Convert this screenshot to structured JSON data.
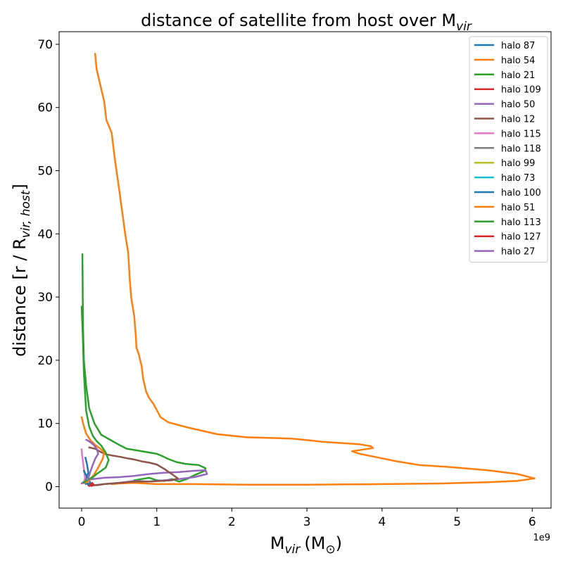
{
  "chart_data": {
    "type": "line",
    "title": "distance of satellite from host over M",
    "title_sub": "vir",
    "xlabel": "M",
    "xlabel_sub": "vir",
    "xlabel_unit": "(M",
    "xlabel_unit_sub": "⊙",
    "xlabel_close": ")",
    "ylabel": "distance [r / R",
    "ylabel_sub": "vir, host",
    "ylabel_close": "]",
    "x_offset_text": "1e9",
    "x_scale": 1000000000,
    "xlim": [
      -300000000,
      6250000000
    ],
    "ylim": [
      -3.4,
      72
    ],
    "xticks": [
      0,
      1000000000,
      2000000000,
      3000000000,
      4000000000,
      5000000000,
      6000000000
    ],
    "xtick_labels": [
      "0",
      "1",
      "2",
      "3",
      "4",
      "5",
      "6"
    ],
    "yticks": [
      0,
      10,
      20,
      30,
      40,
      50,
      60,
      70
    ],
    "ytick_labels": [
      "0",
      "10",
      "20",
      "30",
      "40",
      "50",
      "60",
      "70"
    ],
    "grid": false,
    "legend_position": "top-right",
    "series": [
      {
        "name": "halo 87",
        "color": "#1f77b4",
        "x": [
          50000000,
          70000000,
          90000000,
          60000000,
          40000000,
          55000000,
          80000000,
          60000000
        ],
        "y": [
          4.6,
          3.6,
          2.2,
          1.4,
          0.8,
          0.4,
          0.6,
          1.0
        ]
      },
      {
        "name": "halo 54",
        "color": "#ff7f0e",
        "x": [
          180000000,
          200000000,
          300000000,
          330000000,
          400000000,
          440000000,
          500000000,
          580000000,
          620000000,
          640000000,
          660000000,
          700000000,
          720000000,
          730000000,
          760000000,
          800000000,
          820000000,
          860000000,
          900000000,
          960000000,
          1050000000,
          1150000000,
          1400000000,
          1800000000,
          2200000000,
          2500000000,
          2800000000,
          3050000000,
          3200000000,
          3450000000,
          3700000000,
          3850000000,
          3880000000,
          3600000000,
          3700000000,
          3950000000,
          4200000000,
          4500000000,
          4900000000,
          5400000000,
          5800000000,
          6030000000,
          5800000000,
          5400000000,
          4800000000,
          4000000000,
          3000000000,
          2200000000,
          1500000000,
          1000000000,
          700000000,
          500000000,
          400000000
        ],
        "y": [
          68.5,
          66,
          61,
          58,
          56,
          52,
          47,
          40,
          37,
          33,
          30,
          27,
          24,
          22,
          21,
          19,
          17,
          15,
          14,
          13,
          11,
          10.2,
          9.4,
          8.3,
          7.8,
          7.7,
          7.6,
          7.3,
          7.1,
          6.9,
          6.7,
          6.4,
          6.1,
          5.6,
          5.2,
          4.6,
          4.0,
          3.4,
          3.1,
          2.6,
          2.0,
          1.3,
          0.9,
          0.7,
          0.5,
          0.4,
          0.3,
          0.3,
          0.4,
          0.4,
          0.6,
          0.5,
          0.4
        ]
      },
      {
        "name": "halo 21",
        "color": "#2ca02c",
        "x": [
          10000000,
          12000000,
          15000000,
          20000000,
          30000000,
          60000000,
          100000000,
          170000000,
          260000000,
          380000000,
          500000000,
          600000000,
          700000000,
          900000000,
          1000000000,
          1080000000,
          1150000000,
          1260000000,
          1380000000,
          1560000000,
          1650000000,
          1640000000,
          1500000000,
          1400000000,
          1300000000,
          1200000000,
          1100000000,
          1000000000,
          900000000,
          800000000,
          700000000
        ],
        "y": [
          36.8,
          34,
          30,
          25,
          20,
          16,
          12.4,
          10,
          8.2,
          7.4,
          6.6,
          6.0,
          5.8,
          5.4,
          5.2,
          4.8,
          4.4,
          3.9,
          3.6,
          3.4,
          2.9,
          2.5,
          1.8,
          1.2,
          0.8,
          1.2,
          0.9,
          1.0,
          1.4,
          1.2,
          1.0
        ]
      },
      {
        "name": "halo 109",
        "color": "#d62728",
        "x": [
          80000000,
          100000000,
          120000000,
          110000000,
          90000000
        ],
        "y": [
          0.4,
          0.1,
          0.3,
          0.6,
          0.2
        ]
      },
      {
        "name": "halo 50",
        "color": "#9467bd",
        "x": [
          0,
          30000000,
          70000000,
          150000000,
          300000000,
          500000000,
          700000000,
          900000000,
          1100000000,
          1300000000,
          1500000000,
          1650000000,
          1670000000,
          1500000000,
          1300000000,
          1100000000,
          900000000,
          700000000,
          500000000,
          300000000,
          200000000
        ],
        "y": [
          0.5,
          0.8,
          1.0,
          1.2,
          1.4,
          1.5,
          1.7,
          2.0,
          2.2,
          2.3,
          2.5,
          2.6,
          2.0,
          1.5,
          1.2,
          1.0,
          0.8,
          0.9,
          0.6,
          0.4,
          0.2
        ]
      },
      {
        "name": "halo 12",
        "color": "#8c564b",
        "x": [
          100000000,
          180000000,
          250000000,
          330000000,
          420000000,
          520000000,
          600000000,
          700000000,
          800000000,
          900000000,
          1000000000,
          1100000000,
          1200000000,
          1280000000,
          1200000000,
          1050000000,
          900000000,
          700000000,
          500000000,
          300000000,
          150000000
        ],
        "y": [
          6.2,
          6.0,
          5.5,
          5.1,
          4.9,
          4.7,
          4.5,
          4.3,
          4.0,
          3.8,
          3.5,
          2.8,
          2.0,
          1.3,
          1.0,
          0.9,
          0.8,
          0.8,
          0.6,
          0.4,
          0.2
        ]
      },
      {
        "name": "halo 115",
        "color": "#e377c2",
        "x": [
          0,
          5000000,
          15000000,
          25000000,
          35000000,
          45000000,
          35000000,
          20000000
        ],
        "y": [
          5.9,
          5.2,
          4.2,
          3.3,
          2.4,
          1.4,
          0.8,
          0.5
        ]
      },
      {
        "name": "halo 118",
        "color": "#7f7f7f",
        "x": [],
        "y": []
      },
      {
        "name": "halo 99",
        "color": "#bcbd22",
        "x": [],
        "y": []
      },
      {
        "name": "halo 73",
        "color": "#17becf",
        "x": [],
        "y": []
      },
      {
        "name": "halo 100",
        "color": "#1f77b4",
        "x": [
          30000000,
          60000000,
          100000000,
          120000000,
          90000000,
          70000000
        ],
        "y": [
          2.5,
          1.8,
          1.0,
          0.5,
          0.3,
          0.8
        ]
      },
      {
        "name": "halo 51",
        "color": "#ff7f0e",
        "x": [
          0,
          20000000,
          60000000,
          120000000,
          180000000,
          250000000,
          300000000,
          280000000,
          220000000,
          160000000,
          100000000,
          60000000
        ],
        "y": [
          11.0,
          10.0,
          8.4,
          7.3,
          6.6,
          6.0,
          5.4,
          4.4,
          3.0,
          1.8,
          1.0,
          0.6
        ]
      },
      {
        "name": "halo 113",
        "color": "#2ca02c",
        "x": [
          0,
          15000000,
          30000000,
          60000000,
          100000000,
          150000000,
          200000000,
          260000000,
          320000000,
          360000000,
          320000000,
          250000000,
          200000000,
          150000000,
          100000000,
          60000000,
          30000000
        ],
        "y": [
          28.5,
          24,
          18,
          12,
          9.5,
          8.0,
          7.2,
          6.5,
          5.4,
          4.2,
          3.0,
          2.4,
          2.0,
          1.5,
          1.2,
          1.0,
          0.6
        ]
      },
      {
        "name": "halo 127",
        "color": "#d62728",
        "x": [
          120000000,
          140000000,
          160000000,
          130000000
        ],
        "y": [
          0.2,
          0.6,
          0.3,
          0.1
        ]
      },
      {
        "name": "halo 27",
        "color": "#9467bd",
        "x": [
          60000000,
          80000000,
          120000000,
          160000000,
          200000000,
          220000000,
          180000000,
          140000000,
          100000000,
          80000000
        ],
        "y": [
          7.4,
          7.3,
          7.0,
          6.6,
          6.0,
          5.2,
          4.4,
          3.2,
          1.8,
          1.0
        ]
      }
    ]
  }
}
